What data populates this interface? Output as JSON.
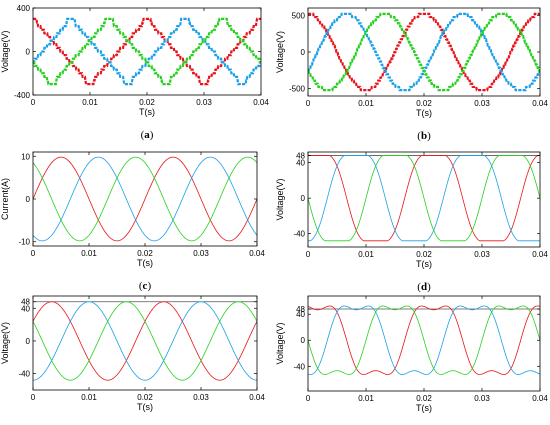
{
  "chart_data": [
    {
      "panel": "a",
      "type": "line",
      "caption_open": "(",
      "caption_letter": "a",
      "caption_close": ")",
      "xlabel": "T(s)",
      "ylabel": "Voltage(V)",
      "xlim": [
        0,
        0.04
      ],
      "ylim": [
        -400,
        400
      ],
      "xticks": [
        0,
        0.01,
        0.02,
        0.03,
        0.04
      ],
      "xtick_labels": [
        "0",
        "0.01",
        "0.02",
        "0.03",
        "0.04"
      ],
      "yticks": [
        -400,
        0,
        400
      ],
      "ytick_labels": [
        "-400",
        "0",
        "400"
      ],
      "waveform": "stepped-triangle",
      "amplitude": 300,
      "period": 0.02,
      "ref_line": null,
      "series": [
        {
          "color": "#e8141a",
          "phase_deg": 90,
          "values": [
            0,
            300,
            0,
            -300,
            0
          ]
        },
        {
          "color": "#1aa0e8",
          "phase_deg": -30,
          "values": [
            0,
            300,
            0,
            -300,
            0
          ]
        },
        {
          "color": "#26d11e",
          "phase_deg": 210,
          "values": [
            0,
            300,
            0,
            -300,
            0
          ]
        }
      ]
    },
    {
      "panel": "b",
      "type": "line",
      "caption_open": "(",
      "caption_letter": "b",
      "caption_close": ")",
      "xlabel": "T(s)",
      "ylabel": "Voltage(V)",
      "xlim": [
        0,
        0.04
      ],
      "ylim": [
        -600,
        600
      ],
      "xticks": [
        0,
        0.01,
        0.02,
        0.03,
        0.04
      ],
      "xtick_labels": [
        "0",
        "0.01",
        "0.02",
        "0.03",
        "0.04"
      ],
      "yticks": [
        -500,
        0,
        500
      ],
      "ytick_labels": [
        "-500",
        "0",
        "500"
      ],
      "waveform": "stepped-sine",
      "amplitude": 520,
      "period": 0.02,
      "ref_line": null,
      "series": [
        {
          "color": "#e8141a",
          "phase_deg": 90,
          "values": [
            0,
            520,
            0,
            -520,
            0
          ]
        },
        {
          "color": "#1aa0e8",
          "phase_deg": -30,
          "values": [
            0,
            520,
            0,
            -520,
            0
          ]
        },
        {
          "color": "#26d11e",
          "phase_deg": 210,
          "values": [
            0,
            520,
            0,
            -520,
            0
          ]
        }
      ]
    },
    {
      "panel": "c",
      "type": "line",
      "caption_open": "(",
      "caption_letter": "c",
      "caption_close": ")",
      "xlabel": "T(s)",
      "ylabel": "Current(A)",
      "xlim": [
        0,
        0.04
      ],
      "ylim": [
        -11,
        11
      ],
      "xticks": [
        0,
        0.01,
        0.02,
        0.03,
        0.04
      ],
      "xtick_labels": [
        "0",
        "0.01",
        "0.02",
        "0.03",
        "0.04"
      ],
      "yticks": [
        -10,
        0,
        10
      ],
      "ytick_labels": [
        "-10",
        "0",
        "10"
      ],
      "waveform": "sine",
      "amplitude": 9.8,
      "period": 0.02,
      "ref_line": null,
      "series": [
        {
          "color": "#e8141a",
          "phase_deg": 0,
          "values": [
            0,
            9.8,
            0,
            -9.8,
            0
          ]
        },
        {
          "color": "#1aa0e8",
          "phase_deg": -120,
          "values": [
            -8.5,
            9.8,
            8.5,
            -9.8,
            -8.5
          ]
        },
        {
          "color": "#26d11e",
          "phase_deg": 120,
          "values": [
            8.5,
            -9.8,
            -8.5,
            9.8,
            8.5
          ]
        }
      ]
    },
    {
      "panel": "d",
      "type": "line",
      "caption_open": "(",
      "caption_letter": "d",
      "caption_close": ")",
      "xlabel": "T(s)",
      "ylabel": "Voltage(V)",
      "xlim": [
        0,
        0.04
      ],
      "ylim": [
        -55,
        52
      ],
      "xticks": [
        0,
        0.01,
        0.02,
        0.03,
        0.04
      ],
      "xtick_labels": [
        "0",
        "0.01",
        "0.02",
        "0.03",
        "0.04"
      ],
      "yticks": [
        -40,
        0,
        40,
        48
      ],
      "ytick_labels": [
        "-40",
        "0",
        "40",
        "48"
      ],
      "waveform": "flat-top",
      "amplitude": 48,
      "period": 0.02,
      "ref_line": 48,
      "series": [
        {
          "color": "#e8141a",
          "phase_deg": 60,
          "values": [
            40,
            44,
            -40,
            -46,
            40
          ]
        },
        {
          "color": "#1aa0e8",
          "phase_deg": -60,
          "values": [
            -40,
            46,
            40,
            -46,
            -40
          ]
        },
        {
          "color": "#26d11e",
          "phase_deg": 180,
          "values": [
            40,
            -46,
            -40,
            46,
            40
          ]
        }
      ]
    },
    {
      "panel": "e",
      "type": "line",
      "caption_open": "(",
      "caption_letter": "e",
      "caption_close": ")",
      "xlabel": "T(s)",
      "ylabel": "Voltage(V)",
      "xlim": [
        0,
        0.04
      ],
      "ylim": [
        -60,
        55
      ],
      "xticks": [
        0,
        0.01,
        0.02,
        0.03,
        0.04
      ],
      "xtick_labels": [
        "0",
        "0.01",
        "0.02",
        "0.03",
        "0.04"
      ],
      "yticks": [
        -40,
        0,
        40,
        48
      ],
      "ytick_labels": [
        "-40",
        "0",
        "40",
        "48"
      ],
      "waveform": "sine",
      "amplitude": 48,
      "period": 0.02,
      "ref_line": 48,
      "series": [
        {
          "color": "#e8141a",
          "phase_deg": 30,
          "values": [
            24,
            48,
            -24,
            -48,
            24
          ]
        },
        {
          "color": "#1aa0e8",
          "phase_deg": -90,
          "values": [
            -48,
            24,
            48,
            -24,
            -48
          ]
        },
        {
          "color": "#26d11e",
          "phase_deg": 150,
          "values": [
            24,
            -48,
            -24,
            48,
            24
          ]
        }
      ]
    },
    {
      "panel": "f",
      "type": "line",
      "caption_open": "(",
      "caption_letter": "f",
      "caption_close": ")",
      "xlabel": "T(s)",
      "ylabel": "Voltage(V)",
      "xlim": [
        0,
        0.04
      ],
      "ylim": [
        -78,
        68
      ],
      "xticks": [
        0,
        0.01,
        0.02,
        0.03,
        0.04
      ],
      "xtick_labels": [
        "0",
        "0.01",
        "0.02",
        "0.03",
        "0.04"
      ],
      "yticks": [
        -40,
        0,
        40,
        48
      ],
      "ytick_labels": [
        "-40",
        "0",
        "40",
        "48"
      ],
      "waveform": "distorted",
      "amplitude": 60,
      "period": 0.02,
      "ref_line": 48,
      "series": [
        {
          "color": "#e8141a",
          "phase_deg": 60,
          "values": [
            30,
            60,
            -30,
            -60,
            30
          ]
        },
        {
          "color": "#1aa0e8",
          "phase_deg": -60,
          "values": [
            -36,
            36,
            36,
            -36,
            -36
          ]
        },
        {
          "color": "#26d11e",
          "phase_deg": 180,
          "values": [
            36,
            -36,
            -36,
            36,
            36
          ]
        }
      ]
    }
  ]
}
